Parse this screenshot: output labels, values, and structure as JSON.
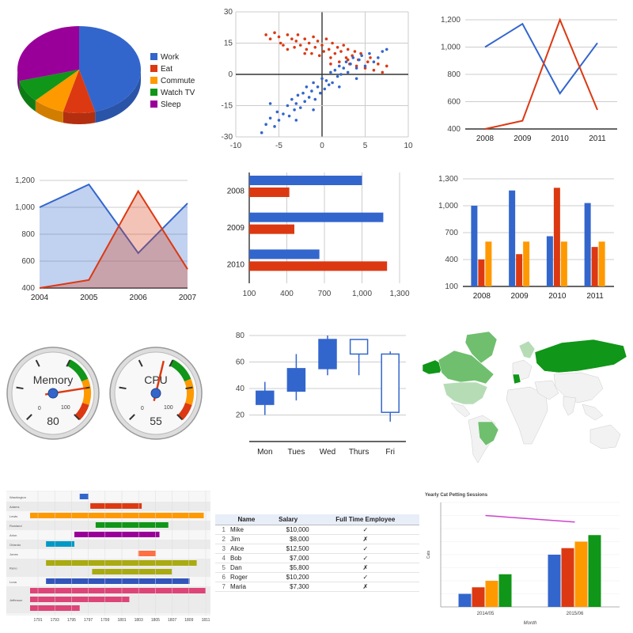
{
  "chart_data": [
    {
      "type": "pie",
      "title": "",
      "categories": [
        "Work",
        "Eat",
        "Commute",
        "Watch TV",
        "Sleep"
      ],
      "values": [
        11,
        2,
        2,
        2,
        7
      ],
      "colors": [
        "#3366cc",
        "#dc3912",
        "#ff9900",
        "#109618",
        "#990099"
      ],
      "legend": "right",
      "style": "3d"
    },
    {
      "type": "scatter",
      "title": "",
      "xlim": [
        -10,
        10
      ],
      "ylim": [
        -30,
        30
      ],
      "xticks": [
        "-10",
        "-5",
        "0",
        "5",
        "10"
      ],
      "yticks": [
        "30",
        "15",
        "0",
        "-15",
        "-30"
      ],
      "grid": true,
      "series": [
        {
          "color": "#dc3912",
          "points": [
            [
              -6.5,
              19
            ],
            [
              -6,
              17
            ],
            [
              -5.5,
              20
            ],
            [
              -5,
              18
            ],
            [
              -4.8,
              15
            ],
            [
              -4.5,
              14
            ],
            [
              -4,
              19
            ],
            [
              -3.5,
              17
            ],
            [
              -3.2,
              13
            ],
            [
              -3,
              16
            ],
            [
              -2.8,
              19
            ],
            [
              -2.5,
              14
            ],
            [
              -2,
              17
            ],
            [
              -1.8,
              12
            ],
            [
              -1.5,
              15
            ],
            [
              -1.2,
              10
            ],
            [
              -1,
              18
            ],
            [
              -0.8,
              13
            ],
            [
              -0.5,
              16
            ],
            [
              -0.3,
              9
            ],
            [
              0,
              14
            ],
            [
              0.2,
              11
            ],
            [
              0.5,
              17
            ],
            [
              0.8,
              12
            ],
            [
              1,
              8
            ],
            [
              1.2,
              15
            ],
            [
              1.5,
              10
            ],
            [
              1.8,
              13
            ],
            [
              2,
              6
            ],
            [
              2.2,
              11
            ],
            [
              2.5,
              14
            ],
            [
              2.8,
              8
            ],
            [
              3,
              12
            ],
            [
              3.2,
              5
            ],
            [
              3.5,
              9
            ],
            [
              3.8,
              11
            ],
            [
              4,
              4
            ],
            [
              4.2,
              7
            ],
            [
              4.5,
              10
            ],
            [
              5,
              3
            ],
            [
              5.3,
              6
            ],
            [
              5.6,
              8
            ],
            [
              6,
              2
            ],
            [
              6.5,
              5
            ],
            [
              7,
              1
            ],
            [
              7.5,
              4
            ],
            [
              -4,
              12
            ],
            [
              -2,
              10
            ],
            [
              1,
              5
            ],
            [
              3,
              7
            ]
          ]
        },
        {
          "color": "#3366cc",
          "points": [
            [
              -7,
              -28
            ],
            [
              -6.5,
              -24
            ],
            [
              -6,
              -21
            ],
            [
              -5.5,
              -25
            ],
            [
              -5.2,
              -18
            ],
            [
              -5,
              -22
            ],
            [
              -4.5,
              -19
            ],
            [
              -4,
              -15
            ],
            [
              -3.8,
              -20
            ],
            [
              -3.5,
              -12
            ],
            [
              -3.2,
              -17
            ],
            [
              -3,
              -14
            ],
            [
              -2.8,
              -10
            ],
            [
              -2.5,
              -16
            ],
            [
              -2.2,
              -9
            ],
            [
              -2,
              -13
            ],
            [
              -1.8,
              -6
            ],
            [
              -1.5,
              -11
            ],
            [
              -1.2,
              -8
            ],
            [
              -1,
              -4
            ],
            [
              -0.8,
              -12
            ],
            [
              -0.5,
              -6
            ],
            [
              -0.2,
              -9
            ],
            [
              0,
              -2
            ],
            [
              0.3,
              -7
            ],
            [
              0.5,
              -3
            ],
            [
              0.8,
              -5
            ],
            [
              1,
              1
            ],
            [
              1.2,
              -4
            ],
            [
              1.5,
              2
            ],
            [
              1.8,
              -1
            ],
            [
              2,
              4
            ],
            [
              2.2,
              0
            ],
            [
              2.5,
              3
            ],
            [
              2.8,
              6
            ],
            [
              3,
              1
            ],
            [
              3.3,
              5
            ],
            [
              3.6,
              8
            ],
            [
              4,
              3
            ],
            [
              4.3,
              7
            ],
            [
              4.6,
              9
            ],
            [
              5,
              4
            ],
            [
              5.5,
              10
            ],
            [
              6,
              6
            ],
            [
              6.5,
              8
            ],
            [
              7,
              11
            ],
            [
              7.5,
              12
            ],
            [
              -3,
              -22
            ],
            [
              -1,
              -17
            ],
            [
              2,
              -6
            ],
            [
              4,
              -2
            ],
            [
              -6,
              -14
            ]
          ]
        }
      ]
    },
    {
      "type": "line",
      "title": "",
      "categories": [
        "2008",
        "2009",
        "2010",
        "2011"
      ],
      "ylim": [
        400,
        1200
      ],
      "yticks": [
        "1,200",
        "1,000",
        "800",
        "600",
        "400"
      ],
      "series": [
        {
          "color": "#3366cc",
          "values": [
            1000,
            1170,
            660,
            1030
          ]
        },
        {
          "color": "#dc3912",
          "values": [
            400,
            460,
            1200,
            540
          ]
        }
      ]
    },
    {
      "type": "area",
      "title": "",
      "categories": [
        "2004",
        "2005",
        "2006",
        "2007"
      ],
      "ylim": [
        400,
        1200
      ],
      "yticks": [
        "1,200",
        "1,000",
        "800",
        "600",
        "400"
      ],
      "series": [
        {
          "color": "#3366cc",
          "values": [
            1000,
            1170,
            660,
            1030
          ]
        },
        {
          "color": "#dc3912",
          "values": [
            400,
            460,
            1120,
            540
          ]
        }
      ]
    },
    {
      "type": "bar",
      "orientation": "horizontal",
      "title": "",
      "categories": [
        "2008",
        "2009",
        "2010"
      ],
      "xlim": [
        100,
        1300
      ],
      "xticks": [
        "100",
        "400",
        "700",
        "1,000",
        "1,300"
      ],
      "series": [
        {
          "color": "#3366cc",
          "values": [
            1000,
            1170,
            660
          ]
        },
        {
          "color": "#dc3912",
          "values": [
            420,
            460,
            1200
          ]
        }
      ]
    },
    {
      "type": "bar",
      "title": "",
      "categories": [
        "2008",
        "2009",
        "2010",
        "2011"
      ],
      "ylim": [
        100,
        1300
      ],
      "yticks": [
        "1,300",
        "1,000",
        "700",
        "400",
        "100"
      ],
      "series": [
        {
          "color": "#3366cc",
          "values": [
            1000,
            1170,
            660,
            1030
          ]
        },
        {
          "color": "#dc3912",
          "values": [
            400,
            460,
            1200,
            540
          ]
        },
        {
          "color": "#ff9900",
          "values": [
            600,
            600,
            600,
            600
          ]
        }
      ]
    },
    {
      "type": "gauge",
      "gauges": [
        {
          "label": "Memory",
          "value": 80,
          "min_label": "0",
          "max_label": "100"
        },
        {
          "label": "CPU",
          "value": 55,
          "min_label": "0",
          "max_label": "100"
        }
      ]
    },
    {
      "type": "candlestick",
      "title": "",
      "categories": [
        "Mon",
        "Tues",
        "Wed",
        "Thurs",
        "Fri"
      ],
      "ylim": [
        0,
        80
      ],
      "yticks": [
        "80",
        "60",
        "40",
        "20"
      ],
      "data": [
        {
          "low": 20,
          "open": 28,
          "close": 38,
          "high": 45
        },
        {
          "low": 31,
          "open": 38,
          "close": 55,
          "high": 66
        },
        {
          "low": 50,
          "open": 55,
          "close": 77,
          "high": 80
        },
        {
          "low": 50,
          "open": 77,
          "close": 66,
          "high": 77
        },
        {
          "low": 15,
          "open": 66,
          "close": 22,
          "high": 68
        }
      ]
    },
    {
      "type": "map",
      "title": "",
      "colors": {
        "high": "#109618",
        "mid": "#6fbf6f",
        "low": "#b6dcb6",
        "none": "#f2f2f2"
      }
    },
    {
      "type": "timeline",
      "rows": [
        {
          "label": "Washington",
          "bars": [
            {
              "start": 0.28,
              "end": 0.33,
              "color": "#3366cc"
            }
          ]
        },
        {
          "label": "Adams",
          "bars": [
            {
              "start": 0.34,
              "end": 0.63,
              "color": "#dc3912"
            }
          ]
        },
        {
          "label": "Lewis",
          "bars": [
            {
              "start": 0.0,
              "end": 0.98,
              "color": "#ff9900"
            }
          ]
        },
        {
          "label": "Rowland",
          "bars": [
            {
              "start": 0.37,
              "end": 0.78,
              "color": "#109618"
            }
          ]
        },
        {
          "label": "Arlon",
          "bars": [
            {
              "start": 0.25,
              "end": 0.73,
              "color": "#990099"
            }
          ]
        },
        {
          "label": "Orlando",
          "bars": [
            {
              "start": 0.09,
              "end": 0.25,
              "color": "#0099c6"
            }
          ]
        },
        {
          "label": "Jones",
          "bars": [
            {
              "start": 0.61,
              "end": 0.71,
              "color": "#ff7043"
            }
          ]
        },
        {
          "label": "Reno",
          "bars": [
            {
              "start": 0.09,
              "end": 0.94,
              "color": "#aaaa11"
            },
            {
              "start": 0.35,
              "end": 0.8,
              "color": "#aaaa11"
            }
          ]
        },
        {
          "label": "Luna",
          "bars": [
            {
              "start": 0.09,
              "end": 0.9,
              "color": "#3355bb"
            }
          ]
        },
        {
          "label": "Jefferson",
          "bars": [
            {
              "start": 0.0,
              "end": 0.99,
              "color": "#dd4477"
            },
            {
              "start": 0.0,
              "end": 0.56,
              "color": "#dd4477"
            },
            {
              "start": 0.0,
              "end": 0.28,
              "color": "#dd4477"
            }
          ]
        }
      ],
      "xticks": [
        "1791",
        "1793",
        "1795",
        "1797",
        "1799",
        "1801",
        "1803",
        "1805",
        "1807",
        "1809",
        "1811"
      ]
    },
    {
      "type": "table",
      "columns": [
        "Name",
        "Salary",
        "Full Time Employee"
      ],
      "rows": [
        [
          "1",
          "Mike",
          "$10,000",
          "✓"
        ],
        [
          "2",
          "Jim",
          "$8,000",
          "✗"
        ],
        [
          "3",
          "Alice",
          "$12,500",
          "✓"
        ],
        [
          "4",
          "Bob",
          "$7,000",
          "✓"
        ],
        [
          "5",
          "Dan",
          "$5,800",
          "✗"
        ],
        [
          "6",
          "Roger",
          "$10,200",
          "✓"
        ],
        [
          "7",
          "Maria",
          "$7,300",
          "✗"
        ]
      ]
    },
    {
      "type": "bar",
      "title": "Yearly Cat Petting Sessions",
      "xlabel": "Month",
      "ylabel": "Cats",
      "categories": [
        "2014/05",
        "2015/06"
      ],
      "series": [
        {
          "color": "#3366cc",
          "values": [
            100,
            400
          ]
        },
        {
          "color": "#dc3912",
          "values": [
            150,
            450
          ]
        },
        {
          "color": "#ff9900",
          "values": [
            200,
            500
          ]
        },
        {
          "color": "#109618",
          "values": [
            250,
            550
          ]
        }
      ],
      "line": {
        "color": "#cc44cc",
        "values": [
          700,
          650
        ]
      },
      "ylim": [
        0,
        800
      ]
    }
  ]
}
